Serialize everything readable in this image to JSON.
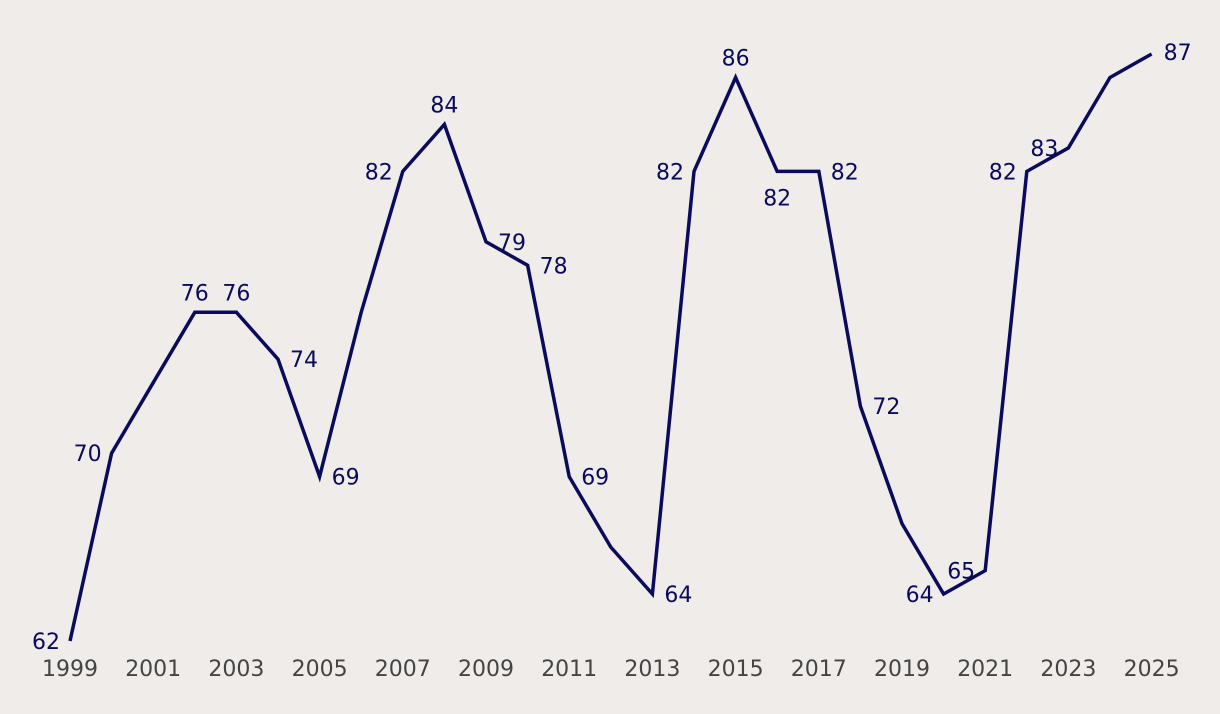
{
  "chart_data": {
    "type": "line",
    "title": "",
    "xlabel": "",
    "ylabel": "",
    "x": [
      1999,
      2000,
      2001,
      2002,
      2003,
      2004,
      2005,
      2006,
      2007,
      2008,
      2009,
      2010,
      2011,
      2012,
      2013,
      2014,
      2015,
      2016,
      2017,
      2018,
      2019,
      2020,
      2021,
      2022,
      2023,
      2024,
      2025
    ],
    "series": [
      {
        "name": "",
        "values": [
          62,
          70,
          73,
          76,
          76,
          74,
          69,
          76,
          82,
          84,
          79,
          78,
          69,
          66,
          64,
          82,
          86,
          82,
          82,
          72,
          67,
          64,
          65,
          82,
          83,
          86,
          87
        ],
        "shown_labels": [
          "62",
          "70",
          "",
          "76",
          "76",
          "74",
          "69",
          "",
          "82",
          "84",
          "79",
          "78",
          "69",
          "",
          "64",
          "82",
          "86",
          "82",
          "82",
          "72",
          "",
          "64",
          "65",
          "82",
          "83",
          "",
          "87"
        ]
      }
    ],
    "x_tick_labels": [
      "1999",
      "2001",
      "2003",
      "2005",
      "2007",
      "2009",
      "2011",
      "2013",
      "2015",
      "2017",
      "2019",
      "2021",
      "2023",
      "2025"
    ],
    "line_color": "#0b0b5c",
    "tick_color": "#444444",
    "background": "#efecea",
    "grid": false,
    "legend": "none"
  }
}
